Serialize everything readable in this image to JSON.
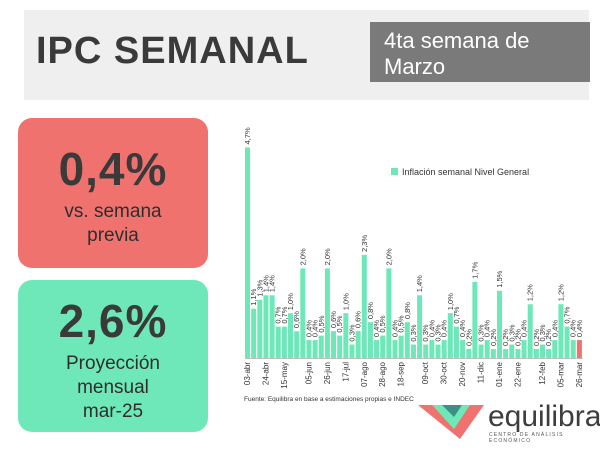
{
  "header": {
    "title": "IPC SEMANAL",
    "week": "4ta semana de\nMarzo"
  },
  "card_weekly": {
    "value": "0,4%",
    "label": "vs. semana\nprevia"
  },
  "card_monthly": {
    "value": "2,6%",
    "label": "Proyección\nmensual\nmar-25"
  },
  "source": "Fuente: Equilibra en base a estimaciones propias e INDEC",
  "logo": {
    "name": "equilibra",
    "tagline": "CENTRO DE ANÁLISIS ECONÓMICO"
  },
  "colors": {
    "bar": "#6fe8b9",
    "bar_last": "#f0726f",
    "card_red": "#f0726f",
    "card_green": "#6fe8b9"
  },
  "chart_data": {
    "type": "bar",
    "legend": "Inflación semanal Nivel General",
    "legend_position": "top-right",
    "grid": false,
    "ylim": [
      0,
      5
    ],
    "tick_labels": [
      "03-abr",
      "24-abr",
      "15-may",
      "05-jun",
      "26-jun",
      "17-jul",
      "07-ago",
      "28-ago",
      "18-sep",
      "09-oct",
      "30-oct",
      "20-nov",
      "11-dic",
      "01-ene",
      "22-ene",
      "12-feb",
      "05-mar",
      "26-mar"
    ],
    "values": [
      4.7,
      1.1,
      1.3,
      1.4,
      1.4,
      0.7,
      0.7,
      1.0,
      0.6,
      2.0,
      0.4,
      0.4,
      0.5,
      2.0,
      0.6,
      0.5,
      1.0,
      0.3,
      0.6,
      2.3,
      0.8,
      0.4,
      0.5,
      2.0,
      0.4,
      0.5,
      0.8,
      0.3,
      1.4,
      0.3,
      0.4,
      0.3,
      0.4,
      1.0,
      0.7,
      0.4,
      0.2,
      1.7,
      0.3,
      0.4,
      0.2,
      1.5,
      0.2,
      0.3,
      0.2,
      0.4,
      1.2,
      0.2,
      0.3,
      0.2,
      0.4,
      1.2,
      0.7,
      0.4,
      0.4
    ],
    "labels": [
      "4,7%",
      "1,1%",
      "1,3%",
      "1,4%",
      "1,4%",
      "0,7%",
      "0,7%",
      "1,0%",
      "0,6%",
      "2,0%",
      "0,4%",
      "0,4%",
      "0,5%",
      "2,0%",
      "0,6%",
      "0,5%",
      "1,0%",
      "0,3%",
      "0,6%",
      "2,3%",
      "0,8%",
      "0,4%",
      "0,5%",
      "2,0%",
      "0,4%",
      "0,5%",
      "0,8%",
      "0,3%",
      "1,4%",
      "0,3%",
      "0,4%",
      "0,3%",
      "0,4%",
      "1,0%",
      "0,7%",
      "0,4%",
      "0,2%",
      "1,7%",
      "0,3%",
      "0,4%",
      "0,2%",
      "1,5%",
      "0,2%",
      "0,3%",
      "0,2%",
      "0,4%",
      "1,2%",
      "0,2%",
      "0,3%",
      "0,2%",
      "0,4%",
      "1,2%",
      "0,7%",
      "0,4%",
      "0,4%"
    ]
  }
}
